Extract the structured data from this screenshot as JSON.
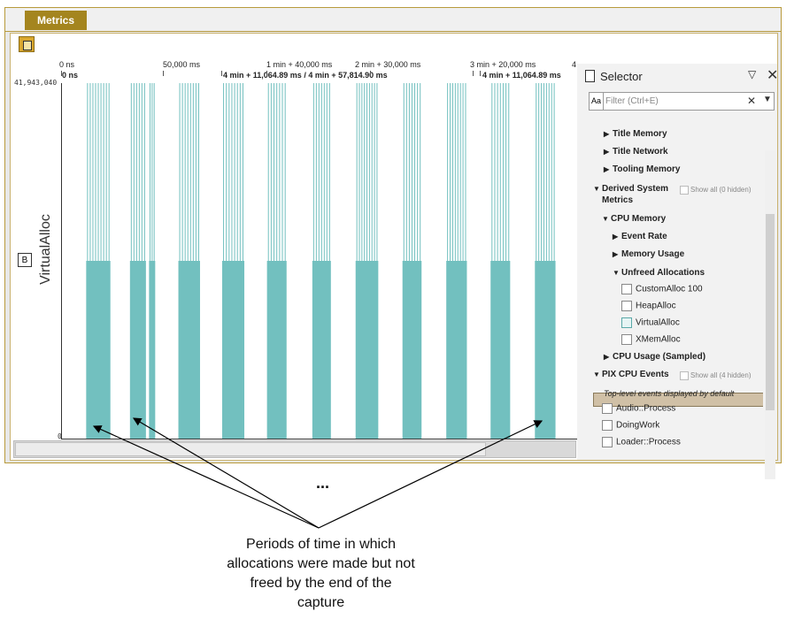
{
  "window": {
    "tab_label": "Metrics"
  },
  "ruler": {
    "top_ticks": [
      "0 ns",
      "50,000 ms",
      "1 min + 40,000 ms",
      "2 min + 30,000 ms",
      "3 min + 20,000 ms",
      "4"
    ],
    "bottom_left": "0 ns",
    "range_label": "4 min + 11,064.89 ms / 4 min + 57,814.90 ms",
    "bottom_right": "4 min + 11,064.89 ms"
  },
  "plot": {
    "y_max_label": "41,943,040",
    "y_min_label": "0",
    "y_axis_label": "VirtualAlloc",
    "lane_button": "B"
  },
  "chart_data": {
    "type": "bar",
    "series": [
      {
        "name": "VirtualAlloc",
        "color": "#72c0bf"
      }
    ],
    "ylim": [
      0,
      41943040
    ],
    "blocks": [
      {
        "start": 0.047,
        "end": 0.094,
        "level": 0.5,
        "spikes": true
      },
      {
        "start": 0.132,
        "end": 0.163,
        "level": 0.5,
        "spikes": true
      },
      {
        "start": 0.169,
        "end": 0.181,
        "level": 0.5,
        "spikes": true
      },
      {
        "start": 0.226,
        "end": 0.268,
        "level": 0.5,
        "spikes": true
      },
      {
        "start": 0.311,
        "end": 0.354,
        "level": 0.5,
        "spikes": true
      },
      {
        "start": 0.398,
        "end": 0.436,
        "level": 0.5,
        "spikes": true
      },
      {
        "start": 0.486,
        "end": 0.522,
        "level": 0.5,
        "spikes": true
      },
      {
        "start": 0.57,
        "end": 0.614,
        "level": 0.5,
        "spikes": true
      },
      {
        "start": 0.661,
        "end": 0.698,
        "level": 0.5,
        "spikes": true
      },
      {
        "start": 0.746,
        "end": 0.786,
        "level": 0.5,
        "spikes": true
      },
      {
        "start": 0.832,
        "end": 0.87,
        "level": 0.5,
        "spikes": true
      },
      {
        "start": 0.918,
        "end": 0.958,
        "level": 0.5,
        "spikes": true
      }
    ]
  },
  "selector": {
    "title": "Selector",
    "filter_placeholder": "Filter (Ctrl+E)",
    "filter_aa": "Aa",
    "items": {
      "title_memory": "Title Memory",
      "title_network": "Title Network",
      "tooling_memory": "Tooling Memory",
      "derived_line1": "Derived System",
      "derived_line2": "Metrics",
      "derived_showall": "Show all (0 hidden)",
      "cpu_memory": "CPU Memory",
      "event_rate": "Event Rate",
      "memory_usage": "Memory Usage",
      "unfreed": "Unfreed Allocations",
      "customalloc": "CustomAlloc 100",
      "heapalloc": "HeapAlloc",
      "virtualalloc": "VirtualAlloc",
      "xmemalloc": "XMemAlloc",
      "cpu_usage": "CPU Usage (Sampled)",
      "pix_events": "PIX CPU Events",
      "pix_showall": "Show all (4 hidden)",
      "top_level_note": "Top-level events displayed by default",
      "audio": "Audio::Process",
      "doingwork": "DoingWork",
      "loader": "Loader::Process"
    }
  },
  "annotation": {
    "ellipsis": "...",
    "caption": "Periods of time in which allocations were made but not freed by the end of the capture"
  }
}
